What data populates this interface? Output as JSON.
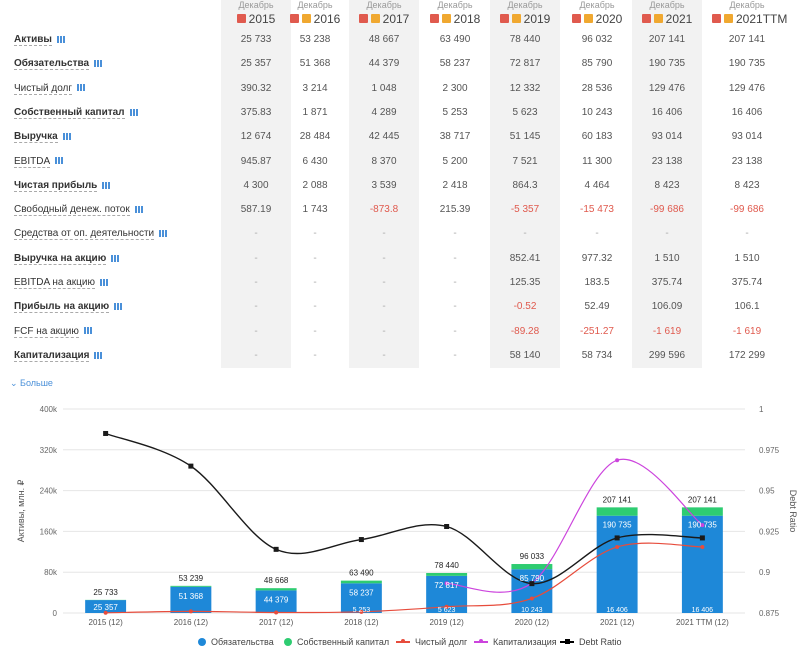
{
  "table": {
    "columns": [
      {
        "month": "Декабрь",
        "year": "2015"
      },
      {
        "month": "Декабрь",
        "year": "2016"
      },
      {
        "month": "Декабрь",
        "year": "2017"
      },
      {
        "month": "Декабрь",
        "year": "2018"
      },
      {
        "month": "Декабрь",
        "year": "2019"
      },
      {
        "month": "Декабрь",
        "year": "2020"
      },
      {
        "month": "Декабрь",
        "year": "2021"
      },
      {
        "month": "Декабрь",
        "year": "2021TTM"
      }
    ],
    "rows": [
      {
        "label": "Активы",
        "bold": true,
        "values": [
          "25 733",
          "53 238",
          "48 667",
          "63 490",
          "78 440",
          "96 032",
          "207 141",
          "207 141"
        ]
      },
      {
        "label": "Обязательства",
        "bold": true,
        "values": [
          "25 357",
          "51 368",
          "44 379",
          "58 237",
          "72 817",
          "85 790",
          "190 735",
          "190 735"
        ]
      },
      {
        "label": "Чистый долг",
        "bold": false,
        "values": [
          "390.32",
          "3 214",
          "1 048",
          "2 300",
          "12 332",
          "28 536",
          "129 476",
          "129 476"
        ]
      },
      {
        "label": "Собственный капитал",
        "bold": true,
        "values": [
          "375.83",
          "1 871",
          "4 289",
          "5 253",
          "5 623",
          "10 243",
          "16 406",
          "16 406"
        ]
      },
      {
        "label": "Выручка",
        "bold": true,
        "values": [
          "12 674",
          "28 484",
          "42 445",
          "38 717",
          "51 145",
          "60 183",
          "93 014",
          "93 014"
        ]
      },
      {
        "label": "EBITDA",
        "bold": false,
        "values": [
          "945.87",
          "6 430",
          "8 370",
          "5 200",
          "7 521",
          "11 300",
          "23 138",
          "23 138"
        ]
      },
      {
        "label": "Чистая прибыль",
        "bold": true,
        "values": [
          "4 300",
          "2 088",
          "3 539",
          "2 418",
          "864.3",
          "4 464",
          "8 423",
          "8 423"
        ]
      },
      {
        "label": "Свободный денеж. поток",
        "bold": false,
        "values": [
          "587.19",
          "1 743",
          "-873.8",
          "215.39",
          "-5 357",
          "-15 473",
          "-99 686",
          "-99 686"
        ]
      },
      {
        "label": "Средства от оп. деятельности",
        "bold": false,
        "values": [
          "-",
          "-",
          "-",
          "-",
          "-",
          "-",
          "-",
          "-"
        ]
      },
      {
        "label": "Выручка на акцию",
        "bold": true,
        "values": [
          "-",
          "-",
          "-",
          "-",
          "852.41",
          "977.32",
          "1 510",
          "1 510"
        ]
      },
      {
        "label": "EBITDA на акцию",
        "bold": false,
        "values": [
          "-",
          "-",
          "-",
          "-",
          "125.35",
          "183.5",
          "375.74",
          "375.74"
        ]
      },
      {
        "label": "Прибыль на акцию",
        "bold": true,
        "values": [
          "-",
          "-",
          "-",
          "-",
          "-0.52",
          "52.49",
          "106.09",
          "106.1"
        ]
      },
      {
        "label": "FCF на акцию",
        "bold": false,
        "values": [
          "-",
          "-",
          "-",
          "-",
          "-89.28",
          "-251.27",
          "-1 619",
          "-1 619"
        ]
      },
      {
        "label": "Капитализация",
        "bold": true,
        "values": [
          "-",
          "-",
          "-",
          "-",
          "58 140",
          "58 734",
          "299 596",
          "172 299"
        ]
      }
    ],
    "more_link": "Больше"
  },
  "colors": {
    "liabilities": "#1e88d8",
    "equity": "#2ecc71",
    "net_debt": "#e74c3c",
    "market_cap": "#cc44dd",
    "debt_ratio": "#1a1a1a"
  },
  "chart_data": {
    "type": "bar",
    "categories": [
      "2015 (12)",
      "2016 (12)",
      "2017 (12)",
      "2018 (12)",
      "2019 (12)",
      "2020 (12)",
      "2021 (12)",
      "2021 TTM (12)"
    ],
    "ylabel": "Активы, млн. ₽",
    "y2label": "Debt Ratio",
    "ylim": [
      0,
      400000
    ],
    "y2lim": [
      0.875,
      1
    ],
    "yticks": [
      "0",
      "80k",
      "160k",
      "240k",
      "320k",
      "400k"
    ],
    "y2ticks": [
      "0.875",
      "0.9",
      "0.925",
      "0.95",
      "0.975",
      "1"
    ],
    "totals_labels": [
      "25 733",
      "53 239",
      "48 668",
      "63 490",
      "78 440",
      "96 033",
      "207 141",
      "207 141"
    ],
    "liab_labels": [
      "25 357",
      "51 368",
      "44 379",
      "58 237",
      "72 817",
      "85 790",
      "190 735",
      "190 735"
    ],
    "equity_labels": [
      "",
      "",
      "",
      "5 253",
      "5 623",
      "10 243",
      "16 406",
      "16 406"
    ],
    "series": [
      {
        "name": "Обязательства",
        "kind": "bar",
        "values": [
          25357,
          51368,
          44379,
          58237,
          72817,
          85790,
          190735,
          190735
        ]
      },
      {
        "name": "Собственный капитал",
        "kind": "bar",
        "values": [
          376,
          1871,
          4289,
          5253,
          5623,
          10243,
          16406,
          16406
        ]
      },
      {
        "name": "Чистый долг",
        "kind": "line",
        "values": [
          390,
          3214,
          1048,
          2300,
          12332,
          28536,
          129476,
          129476
        ]
      },
      {
        "name": "Капитализация",
        "kind": "line",
        "values": [
          null,
          null,
          null,
          null,
          58140,
          58734,
          299596,
          172299
        ]
      },
      {
        "name": "Debt Ratio",
        "kind": "line",
        "axis": "right",
        "values": [
          0.985,
          0.965,
          0.914,
          0.92,
          0.928,
          0.893,
          0.921,
          0.921
        ]
      }
    ],
    "legend_position": "bottom"
  }
}
